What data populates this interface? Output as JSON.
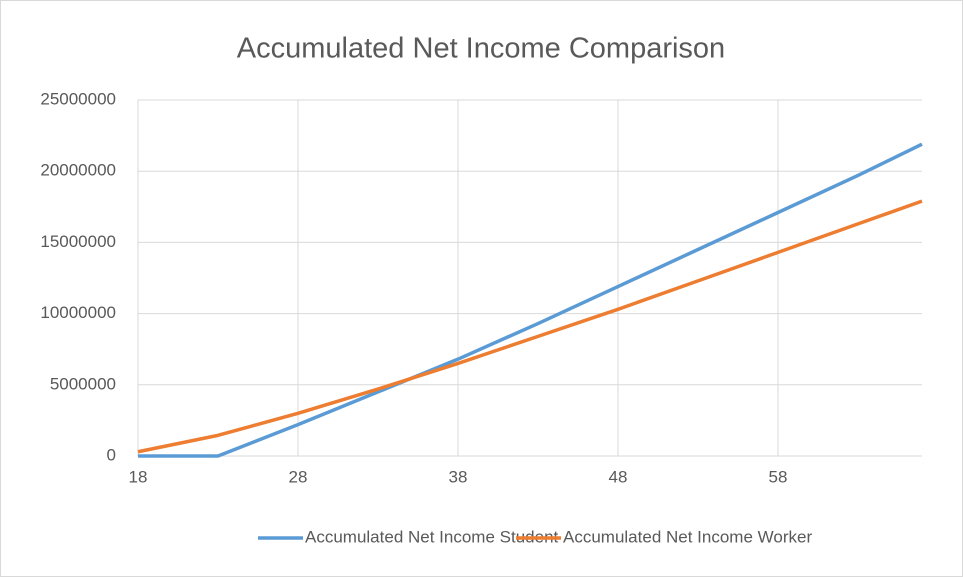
{
  "chart_data": {
    "type": "line",
    "title": "Accumulated Net Income Comparison",
    "x": [
      18,
      23,
      28,
      33,
      38,
      43,
      48,
      53,
      58,
      63,
      67
    ],
    "series": [
      {
        "name": "Accumulated Net Income Student",
        "color": "#5b9bd5",
        "values": [
          0,
          0,
          2200000,
          4500000,
          6800000,
          9300000,
          11900000,
          14500000,
          17100000,
          19700000,
          21900000
        ]
      },
      {
        "name": "Accumulated Net Income Worker",
        "color": "#ed7d31",
        "values": [
          300000,
          1450000,
          3000000,
          4700000,
          6500000,
          8400000,
          10300000,
          12300000,
          14300000,
          16300000,
          17900000
        ]
      }
    ],
    "xlim": [
      18,
      67
    ],
    "xticks": [
      18,
      28,
      38,
      48,
      58
    ],
    "ylim": [
      0,
      25000000
    ],
    "yticks": [
      0,
      5000000,
      10000000,
      15000000,
      20000000,
      25000000
    ],
    "grid": true,
    "legend": "bottom"
  }
}
